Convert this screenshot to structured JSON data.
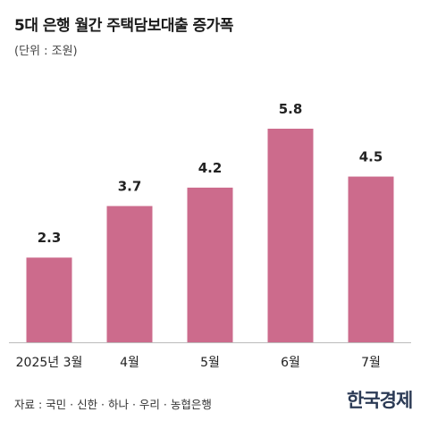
{
  "header": {
    "title": "5대 은행 월간 주택담보대출 증가폭",
    "unit": "(단위 : 조원)"
  },
  "footer": {
    "source": "자료 : 국민 · 신한 · 하나 · 우리 · 농협은행",
    "logo": "한국경제"
  },
  "colors": {
    "bar": "#cc6b8c",
    "axis": "#bbbbbb"
  },
  "chart_data": {
    "type": "bar",
    "categories": [
      "2025년 3월",
      "4월",
      "5월",
      "6월",
      "7월"
    ],
    "values": [
      2.3,
      3.7,
      4.2,
      5.8,
      4.5
    ],
    "value_labels": [
      "2.3",
      "3.7",
      "4.2",
      "5.8",
      "4.5"
    ],
    "title": "5대 은행 월간 주택담보대출 증가폭",
    "ylabel": "(단위 : 조원)",
    "ylim": [
      0,
      5.8
    ],
    "grid": false,
    "legend": "none"
  }
}
